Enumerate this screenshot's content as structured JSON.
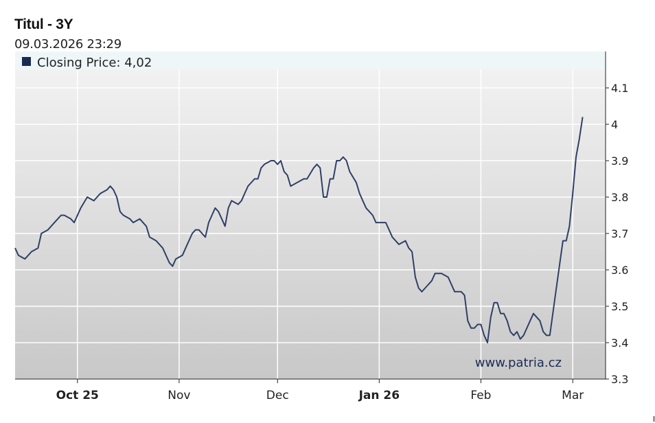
{
  "header": {
    "title": "Titul - 3Y",
    "timestamp": "09.03.2026 23:29"
  },
  "legend": {
    "label": "Closing Price: 4,02"
  },
  "watermark": "www.patria.cz",
  "colors": {
    "line": "#2f3f66",
    "legend_swatch": "#1b2a52",
    "legend_band": "#eef6f8",
    "grid": "#ffffff",
    "plot_bg_top": "#f4f4f4",
    "plot_bg_bottom": "#c8c8c8"
  },
  "chart_data": {
    "type": "line",
    "title": "Titul - 3Y",
    "subtitle": "09.03.2026 23:29",
    "ylim": [
      3.3,
      4.2
    ],
    "y_ticks": [
      3.3,
      3.4,
      3.5,
      3.6,
      3.7,
      3.8,
      3.9,
      4.0,
      4.1
    ],
    "y_tick_labels": [
      "3.3",
      "3.4",
      "3.5",
      "3.6",
      "3.7",
      "3.8",
      "3.9",
      "4",
      "4.1"
    ],
    "x_range": [
      "2025-09-12",
      "2026-03-11"
    ],
    "x_ticks": [
      {
        "date": "2025-10-01",
        "label": "Oct 25",
        "bold": true
      },
      {
        "date": "2025-11-01",
        "label": "Nov",
        "bold": false
      },
      {
        "date": "2025-12-01",
        "label": "Dec",
        "bold": false
      },
      {
        "date": "2026-01-01",
        "label": "Jan 26",
        "bold": true
      },
      {
        "date": "2026-02-01",
        "label": "Feb",
        "bold": false
      },
      {
        "date": "2026-03-01",
        "label": "Mar",
        "bold": false
      }
    ],
    "grid": true,
    "legend": "top-left",
    "series": [
      {
        "name": "Closing Price",
        "last_value": "4,02",
        "points": [
          [
            "2025-09-12",
            3.66
          ],
          [
            "2025-09-13",
            3.64
          ],
          [
            "2025-09-15",
            3.63
          ],
          [
            "2025-09-16",
            3.64
          ],
          [
            "2025-09-17",
            3.65
          ],
          [
            "2025-09-19",
            3.66
          ],
          [
            "2025-09-20",
            3.7
          ],
          [
            "2025-09-22",
            3.71
          ],
          [
            "2025-09-24",
            3.73
          ],
          [
            "2025-09-25",
            3.74
          ],
          [
            "2025-09-26",
            3.75
          ],
          [
            "2025-09-27",
            3.75
          ],
          [
            "2025-09-29",
            3.74
          ],
          [
            "2025-09-30",
            3.73
          ],
          [
            "2025-10-02",
            3.77
          ],
          [
            "2025-10-04",
            3.8
          ],
          [
            "2025-10-06",
            3.79
          ],
          [
            "2025-10-07",
            3.8
          ],
          [
            "2025-10-08",
            3.81
          ],
          [
            "2025-10-10",
            3.82
          ],
          [
            "2025-10-11",
            3.83
          ],
          [
            "2025-10-12",
            3.82
          ],
          [
            "2025-10-13",
            3.8
          ],
          [
            "2025-10-14",
            3.76
          ],
          [
            "2025-10-15",
            3.75
          ],
          [
            "2025-10-17",
            3.74
          ],
          [
            "2025-10-18",
            3.73
          ],
          [
            "2025-10-20",
            3.74
          ],
          [
            "2025-10-21",
            3.73
          ],
          [
            "2025-10-22",
            3.72
          ],
          [
            "2025-10-23",
            3.69
          ],
          [
            "2025-10-25",
            3.68
          ],
          [
            "2025-10-26",
            3.67
          ],
          [
            "2025-10-27",
            3.66
          ],
          [
            "2025-10-28",
            3.64
          ],
          [
            "2025-10-29",
            3.62
          ],
          [
            "2025-10-30",
            3.61
          ],
          [
            "2025-10-31",
            3.63
          ],
          [
            "2025-11-02",
            3.64
          ],
          [
            "2025-11-03",
            3.66
          ],
          [
            "2025-11-05",
            3.7
          ],
          [
            "2025-11-06",
            3.71
          ],
          [
            "2025-11-07",
            3.71
          ],
          [
            "2025-11-08",
            3.7
          ],
          [
            "2025-11-09",
            3.69
          ],
          [
            "2025-11-10",
            3.73
          ],
          [
            "2025-11-12",
            3.77
          ],
          [
            "2025-11-13",
            3.76
          ],
          [
            "2025-11-14",
            3.74
          ],
          [
            "2025-11-15",
            3.72
          ],
          [
            "2025-11-16",
            3.77
          ],
          [
            "2025-11-17",
            3.79
          ],
          [
            "2025-11-19",
            3.78
          ],
          [
            "2025-11-20",
            3.79
          ],
          [
            "2025-11-21",
            3.81
          ],
          [
            "2025-11-22",
            3.83
          ],
          [
            "2025-11-24",
            3.85
          ],
          [
            "2025-11-25",
            3.85
          ],
          [
            "2025-11-26",
            3.88
          ],
          [
            "2025-11-27",
            3.89
          ],
          [
            "2025-11-29",
            3.9
          ],
          [
            "2025-11-30",
            3.9
          ],
          [
            "2025-12-01",
            3.89
          ],
          [
            "2025-12-02",
            3.9
          ],
          [
            "2025-12-03",
            3.87
          ],
          [
            "2025-12-04",
            3.86
          ],
          [
            "2025-12-05",
            3.83
          ],
          [
            "2025-12-07",
            3.84
          ],
          [
            "2025-12-09",
            3.85
          ],
          [
            "2025-12-10",
            3.85
          ],
          [
            "2025-12-12",
            3.88
          ],
          [
            "2025-12-13",
            3.89
          ],
          [
            "2025-12-14",
            3.88
          ],
          [
            "2025-12-15",
            3.8
          ],
          [
            "2025-12-16",
            3.8
          ],
          [
            "2025-12-17",
            3.85
          ],
          [
            "2025-12-18",
            3.85
          ],
          [
            "2025-12-19",
            3.9
          ],
          [
            "2025-12-20",
            3.9
          ],
          [
            "2025-12-21",
            3.91
          ],
          [
            "2025-12-22",
            3.9
          ],
          [
            "2025-12-23",
            3.87
          ],
          [
            "2025-12-25",
            3.84
          ],
          [
            "2025-12-26",
            3.81
          ],
          [
            "2025-12-27",
            3.79
          ],
          [
            "2025-12-28",
            3.77
          ],
          [
            "2025-12-29",
            3.76
          ],
          [
            "2025-12-30",
            3.75
          ],
          [
            "2025-12-31",
            3.73
          ],
          [
            "2026-01-01",
            3.73
          ],
          [
            "2026-01-02",
            3.73
          ],
          [
            "2026-01-03",
            3.73
          ],
          [
            "2026-01-04",
            3.71
          ],
          [
            "2026-01-05",
            3.69
          ],
          [
            "2026-01-06",
            3.68
          ],
          [
            "2026-01-07",
            3.67
          ],
          [
            "2026-01-09",
            3.68
          ],
          [
            "2026-01-10",
            3.66
          ],
          [
            "2026-01-11",
            3.65
          ],
          [
            "2026-01-12",
            3.58
          ],
          [
            "2026-01-13",
            3.55
          ],
          [
            "2026-01-14",
            3.54
          ],
          [
            "2026-01-15",
            3.55
          ],
          [
            "2026-01-17",
            3.57
          ],
          [
            "2026-01-18",
            3.59
          ],
          [
            "2026-01-19",
            3.59
          ],
          [
            "2026-01-20",
            3.59
          ],
          [
            "2026-01-22",
            3.58
          ],
          [
            "2026-01-24",
            3.54
          ],
          [
            "2026-01-25",
            3.54
          ],
          [
            "2026-01-26",
            3.54
          ],
          [
            "2026-01-27",
            3.53
          ],
          [
            "2026-01-28",
            3.46
          ],
          [
            "2026-01-29",
            3.44
          ],
          [
            "2026-01-30",
            3.44
          ],
          [
            "2026-01-31",
            3.45
          ],
          [
            "2026-02-01",
            3.45
          ],
          [
            "2026-02-02",
            3.42
          ],
          [
            "2026-02-03",
            3.4
          ],
          [
            "2026-02-04",
            3.47
          ],
          [
            "2026-02-05",
            3.51
          ],
          [
            "2026-02-06",
            3.51
          ],
          [
            "2026-02-07",
            3.48
          ],
          [
            "2026-02-08",
            3.48
          ],
          [
            "2026-02-09",
            3.46
          ],
          [
            "2026-02-10",
            3.43
          ],
          [
            "2026-02-11",
            3.42
          ],
          [
            "2026-02-12",
            3.43
          ],
          [
            "2026-02-13",
            3.41
          ],
          [
            "2026-02-14",
            3.42
          ],
          [
            "2026-02-16",
            3.46
          ],
          [
            "2026-02-17",
            3.48
          ],
          [
            "2026-02-18",
            3.47
          ],
          [
            "2026-02-19",
            3.46
          ],
          [
            "2026-02-20",
            3.43
          ],
          [
            "2026-02-21",
            3.42
          ],
          [
            "2026-02-22",
            3.42
          ],
          [
            "2026-02-24",
            3.55
          ],
          [
            "2026-02-26",
            3.68
          ],
          [
            "2026-02-27",
            3.68
          ],
          [
            "2026-02-28",
            3.72
          ],
          [
            "2026-03-01",
            3.81
          ],
          [
            "2026-03-02",
            3.91
          ],
          [
            "2026-03-03",
            3.96
          ],
          [
            "2026-03-04",
            4.02
          ]
        ]
      }
    ]
  }
}
